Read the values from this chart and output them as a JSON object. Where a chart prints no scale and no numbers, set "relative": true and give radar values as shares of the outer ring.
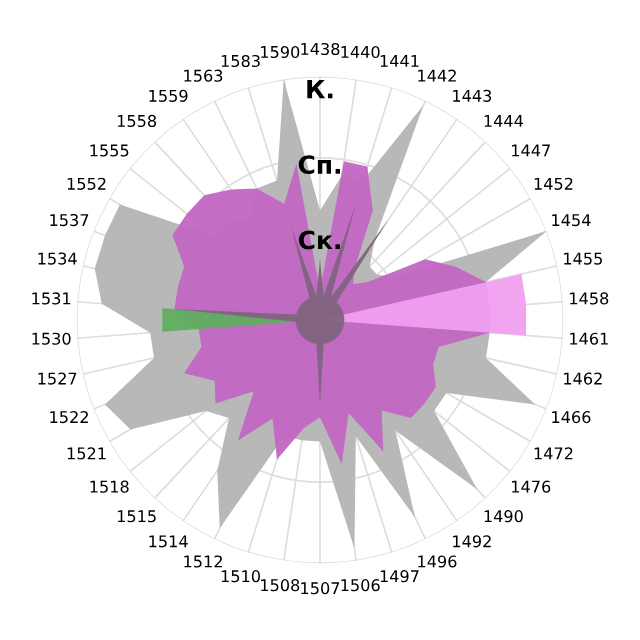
{
  "chart_data": {
    "type": "radar",
    "relative": true,
    "categories": [
      "1438",
      "1440",
      "1441",
      "1442",
      "1443",
      "1444",
      "1447",
      "1452",
      "1454",
      "1455",
      "1458",
      "1461",
      "1462",
      "1466",
      "1472",
      "1476",
      "1490",
      "1492",
      "1496",
      "1497",
      "1506",
      "1507",
      "1508",
      "1510",
      "1512",
      "1514",
      "1515",
      "1518",
      "1521",
      "1522",
      "1527",
      "1530",
      "1531",
      "1534",
      "1537",
      "1552",
      "1555",
      "1558",
      "1559",
      "1563",
      "1583",
      "1590"
    ],
    "series": [
      {
        "color": "#b4b4b4",
        "values": [
          0.45,
          0.6,
          0.6,
          0.98,
          0.4,
          0.3,
          0.3,
          0.35,
          1.0,
          0.7,
          0.7,
          0.7,
          0.7,
          0.95,
          0.6,
          0.6,
          0.95,
          0.55,
          0.9,
          0.5,
          0.95,
          0.5,
          0.5,
          0.5,
          0.95,
          0.75,
          0.55,
          0.6,
          0.9,
          0.95,
          0.7,
          0.7,
          0.9,
          0.95,
          0.95,
          0.95,
          0.55,
          0.55,
          0.5,
          0.6,
          0.6,
          1.0
        ]
      },
      {
        "color": "#c266c2",
        "values": [
          0.12,
          0.66,
          0.66,
          0.5,
          0.25,
          0.2,
          0.25,
          0.5,
          0.6,
          0.7,
          0.7,
          0.7,
          0.5,
          0.5,
          0.55,
          0.55,
          0.55,
          0.45,
          0.6,
          0.4,
          0.6,
          0.4,
          0.45,
          0.6,
          0.45,
          0.6,
          0.4,
          0.55,
          0.5,
          0.6,
          0.5,
          0.5,
          0.6,
          0.6,
          0.6,
          0.7,
          0.7,
          0.7,
          0.65,
          0.6,
          0.5,
          0.65
        ]
      },
      {
        "color": "#f0a0f0",
        "values": [
          0,
          0,
          0,
          0,
          0,
          0,
          0,
          0,
          0,
          0.85,
          0.85,
          0.85,
          0,
          0,
          0,
          0,
          0,
          0,
          0,
          0,
          0,
          0,
          0,
          0,
          0,
          0,
          0,
          0,
          0,
          0,
          0,
          0,
          0,
          0,
          0,
          0,
          0,
          0,
          0,
          0,
          0,
          0
        ]
      },
      {
        "color": "#5fae5f",
        "values": [
          0,
          0,
          0,
          0,
          0,
          0,
          0,
          0,
          0,
          0,
          0,
          0,
          0,
          0,
          0,
          0,
          0,
          0,
          0,
          0,
          0,
          0.55,
          0,
          0,
          0,
          0,
          0,
          0,
          0,
          0,
          0,
          0.65,
          0.65,
          0,
          0,
          0,
          0,
          0,
          0,
          0,
          0,
          0
        ]
      },
      {
        "color": "#806480",
        "values": [
          0.25,
          0.1,
          0.5,
          0.1,
          0.5,
          0.1,
          0.1,
          0.1,
          0.1,
          0.1,
          0.1,
          0.1,
          0.1,
          0.1,
          0.1,
          0.1,
          0.1,
          0.1,
          0.1,
          0.1,
          0.1,
          0.35,
          0.1,
          0.1,
          0.1,
          0.1,
          0.1,
          0.1,
          0.1,
          0.1,
          0.1,
          0.1,
          0.6,
          0.1,
          0.1,
          0.1,
          0.1,
          0.1,
          0.1,
          0.1,
          0.4,
          0.1
        ]
      }
    ],
    "annotations": [
      "К.",
      "Сп.",
      "Ск."
    ],
    "grid": true,
    "legend": false
  }
}
